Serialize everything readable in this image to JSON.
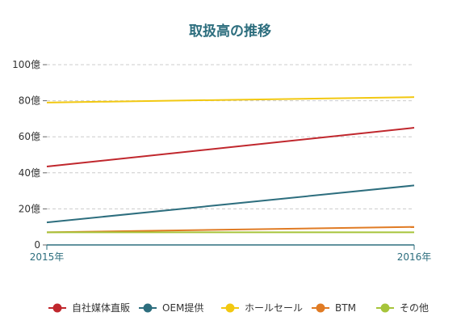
{
  "chart_data": {
    "type": "line",
    "title": "取扱高の推移",
    "xlabel": "",
    "ylabel": "",
    "categories": [
      "2015年",
      "2016年"
    ],
    "ylim": [
      0,
      100
    ],
    "yticks": [
      0,
      20,
      40,
      60,
      80,
      100
    ],
    "ytick_labels": [
      "0",
      "20億",
      "40億",
      "60億",
      "80億",
      "100億"
    ],
    "grid": "horizontal dashed",
    "legend_position": "bottom",
    "series": [
      {
        "name": "自社媒体直販",
        "values": [
          43.5,
          65
        ],
        "color": "#c0272d"
      },
      {
        "name": "OEM提供",
        "values": [
          12.5,
          33
        ],
        "color": "#2d6e7e"
      },
      {
        "name": "ホールセール",
        "values": [
          79,
          82
        ],
        "color": "#f2c811"
      },
      {
        "name": "BTM",
        "values": [
          7,
          10
        ],
        "color": "#e07b24"
      },
      {
        "name": "その他",
        "values": [
          7,
          7
        ],
        "color": "#a6c43a"
      }
    ]
  },
  "colors": {
    "title": "#2d6e7e",
    "axis": "#2d6e7e",
    "grid": "#cccccc",
    "tick_text": "#333333",
    "xtick_text": "#2d6e7e"
  }
}
